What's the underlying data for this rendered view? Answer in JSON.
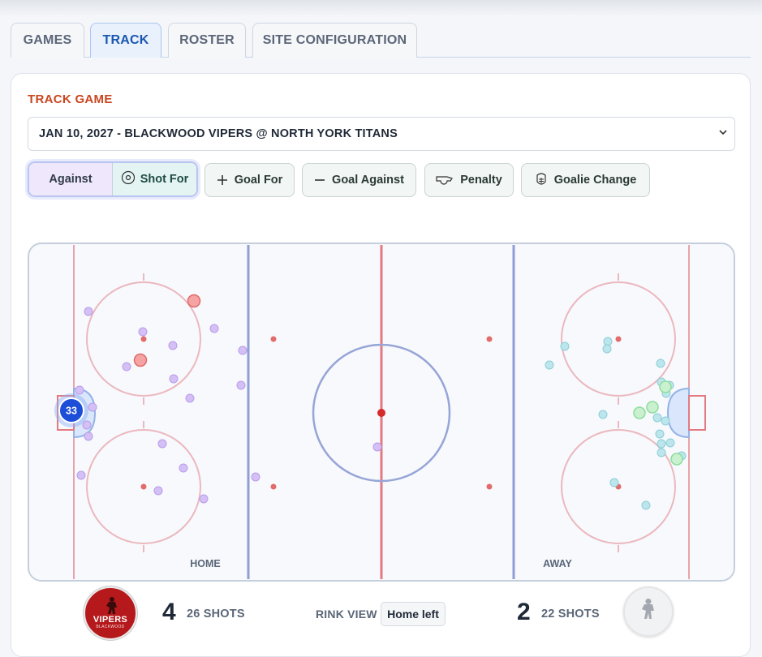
{
  "tabs": [
    {
      "label": "GAMES",
      "active": false
    },
    {
      "label": "TRACK",
      "active": true
    },
    {
      "label": "ROSTER",
      "active": false
    },
    {
      "label": "SITE CONFIGURATION",
      "active": false
    }
  ],
  "track": {
    "title": "TRACK GAME",
    "game_select": "JAN 10, 2027 - BLACKWOOD VIPERS @ NORTH YORK TITANS",
    "mode_toggle": {
      "against": "Against",
      "shot_for": "Shot For"
    },
    "actions": {
      "goal_for": "Goal For",
      "goal_against": "Goal Against",
      "penalty": "Penalty",
      "goalie_change": "Goalie Change"
    }
  },
  "rink": {
    "home_label": "HOME",
    "away_label": "AWAY",
    "goalie_number": "33",
    "colors": {
      "against_shot": "#c9b1f0",
      "against_goal": "#f08f8f",
      "for_shot": "#a6dde4",
      "for_goal": "#b8ecc0",
      "goalie": "#1d4ed8"
    }
  },
  "scoreboard": {
    "home_logo_text": "VIPERS",
    "home_logo_subtext": "BLACKWOOD",
    "home_score": "4",
    "home_shots": "26 SHOTS",
    "rink_view_label": "RINK VIEW",
    "rink_view_value": "Home left",
    "away_score": "2",
    "away_shots": "22 SHOTS"
  }
}
